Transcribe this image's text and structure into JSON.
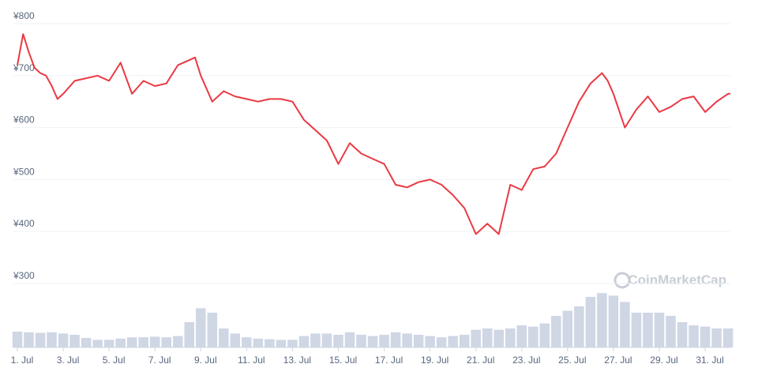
{
  "chart_data": {
    "type": "line",
    "watermark": "CoinMarketCap",
    "xlim": [
      1,
      32.1
    ],
    "xticks": [
      {
        "value": 1,
        "label": "1. Jul"
      },
      {
        "value": 3,
        "label": "3. Jul"
      },
      {
        "value": 5,
        "label": "5. Jul"
      },
      {
        "value": 7,
        "label": "7. Jul"
      },
      {
        "value": 9,
        "label": "9. Jul"
      },
      {
        "value": 11,
        "label": "11. Jul"
      },
      {
        "value": 13,
        "label": "13. Jul"
      },
      {
        "value": 15,
        "label": "15. Jul"
      },
      {
        "value": 17,
        "label": "17. Jul"
      },
      {
        "value": 19,
        "label": "19. Jul"
      },
      {
        "value": 21,
        "label": "21. Jul"
      },
      {
        "value": 23,
        "label": "23. Jul"
      },
      {
        "value": 25,
        "label": "25. Jul"
      },
      {
        "value": 27,
        "label": "27. Jul"
      },
      {
        "value": 29,
        "label": "29. Jul"
      },
      {
        "value": 31,
        "label": "31. Jul"
      }
    ],
    "ylim": [
      300,
      800
    ],
    "yticks": [
      {
        "value": 300,
        "label": "¥300"
      },
      {
        "value": 400,
        "label": "¥400"
      },
      {
        "value": 500,
        "label": "¥500"
      },
      {
        "value": 600,
        "label": "¥600"
      },
      {
        "value": 700,
        "label": "¥700"
      },
      {
        "value": 800,
        "label": "¥800"
      }
    ],
    "y2lim": [
      0,
      100
    ],
    "grid": true,
    "series": [
      {
        "color": "#ea3943",
        "x": [
          1,
          1.25,
          1.5,
          1.75,
          2,
          2.25,
          2.5,
          2.75,
          3,
          3.5,
          4,
          4.5,
          5,
          5.5,
          6,
          6.5,
          7,
          7.5,
          8,
          8.5,
          8.75,
          9,
          9.5,
          10,
          10.5,
          11,
          11.5,
          12,
          12.5,
          13,
          13.5,
          14,
          14.5,
          15,
          15.5,
          16,
          16.5,
          17,
          17.5,
          18,
          18.5,
          19,
          19.5,
          20,
          20.5,
          21,
          21.5,
          22,
          22.5,
          23,
          23.5,
          24,
          24.5,
          25,
          25.5,
          26,
          26.5,
          26.75,
          27,
          27.5,
          28,
          28.5,
          29,
          29.5,
          30,
          30.5,
          31,
          31.5,
          32,
          32.1
        ],
        "values": [
          720,
          780,
          745,
          715,
          705,
          700,
          680,
          655,
          665,
          690,
          695,
          700,
          690,
          725,
          665,
          690,
          680,
          685,
          720,
          730,
          735,
          700,
          650,
          670,
          660,
          655,
          650,
          655,
          655,
          650,
          615,
          595,
          575,
          530,
          570,
          550,
          540,
          530,
          490,
          485,
          495,
          500,
          490,
          470,
          445,
          395,
          415,
          395,
          490,
          480,
          520,
          525,
          550,
          600,
          650,
          685,
          705,
          690,
          665,
          600,
          635,
          660,
          630,
          640,
          655,
          660,
          630,
          650,
          665,
          665
        ]
      },
      {
        "color": "#cfd6e4",
        "axis": "y2",
        "x": [
          1,
          1.5,
          2,
          2.5,
          3,
          3.5,
          4,
          4.5,
          5,
          5.5,
          6,
          6.5,
          7,
          7.5,
          8,
          8.5,
          9,
          9.5,
          10,
          10.5,
          11,
          11.5,
          12,
          12.5,
          13,
          13.5,
          14,
          14.5,
          15,
          15.5,
          16,
          16.5,
          17,
          17.5,
          18,
          18.5,
          19,
          19.5,
          20,
          20.5,
          21,
          21.5,
          22,
          22.5,
          23,
          23.5,
          24,
          24.5,
          25,
          25.5,
          26,
          26.5,
          27,
          27.5,
          28,
          28.5,
          29,
          29.5,
          30,
          30.5,
          31,
          31.5,
          32
        ],
        "values": [
          25,
          24,
          23,
          24,
          22,
          20,
          15,
          12,
          12,
          14,
          16,
          16,
          17,
          16,
          18,
          40,
          62,
          55,
          30,
          22,
          16,
          14,
          13,
          12,
          12,
          18,
          22,
          22,
          20,
          24,
          20,
          18,
          20,
          24,
          22,
          20,
          18,
          16,
          18,
          20,
          28,
          30,
          28,
          30,
          35,
          33,
          38,
          50,
          58,
          65,
          80,
          86,
          82,
          72,
          55,
          55,
          55,
          50,
          40,
          35,
          33,
          30,
          30
        ]
      }
    ]
  }
}
